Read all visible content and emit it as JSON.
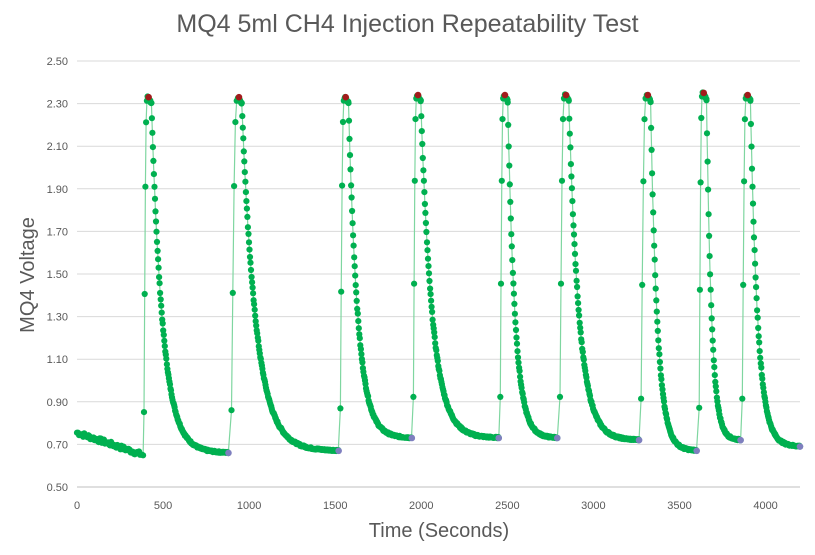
{
  "colors": {
    "series": "#00b050",
    "line": "#7fd6a0",
    "peak_marker": "#a21b1b",
    "base_marker": "#7f7fbf",
    "grid": "#d9d9d9",
    "text": "#595959"
  },
  "chart_data": {
    "type": "scatter",
    "title": "MQ4 5ml CH4  Injection Repeatability Test",
    "xlabel": "Time (Seconds)",
    "ylabel": "MQ4 Voltage",
    "xlim": [
      0,
      4200
    ],
    "ylim": [
      0.5,
      2.5
    ],
    "x_ticks": [
      "0",
      "500",
      "1000",
      "1500",
      "2000",
      "2500",
      "3000",
      "3500",
      "4000"
    ],
    "y_ticks": [
      "0.50",
      "0.70",
      "0.90",
      "1.10",
      "1.30",
      "1.50",
      "1.70",
      "1.90",
      "2.10",
      "2.30",
      "2.50"
    ],
    "grid": "horizontal",
    "legend": "none",
    "series": [
      {
        "marker": "circle",
        "injections": [
          {
            "start_x": 385,
            "peak_x": 410,
            "peak_y": 2.33,
            "end_x": 880,
            "base_before": 0.65,
            "base_after": 0.66
          },
          {
            "start_x": 890,
            "peak_x": 935,
            "peak_y": 2.33,
            "end_x": 1520,
            "base_before": 0.66,
            "base_after": 0.67
          },
          {
            "start_x": 1525,
            "peak_x": 1555,
            "peak_y": 2.33,
            "end_x": 1945,
            "base_before": 0.67,
            "base_after": 0.73
          },
          {
            "start_x": 1950,
            "peak_x": 1975,
            "peak_y": 2.34,
            "end_x": 2450,
            "base_before": 0.73,
            "base_after": 0.73
          },
          {
            "start_x": 2455,
            "peak_x": 2480,
            "peak_y": 2.34,
            "end_x": 2790,
            "base_before": 0.73,
            "base_after": 0.73
          },
          {
            "start_x": 2800,
            "peak_x": 2835,
            "peak_y": 2.34,
            "end_x": 3265,
            "base_before": 0.73,
            "base_after": 0.72
          },
          {
            "start_x": 3270,
            "peak_x": 3310,
            "peak_y": 2.34,
            "end_x": 3600,
            "base_before": 0.72,
            "base_after": 0.67
          },
          {
            "start_x": 3610,
            "peak_x": 3635,
            "peak_y": 2.35,
            "end_x": 3855,
            "base_before": 0.67,
            "base_after": 0.72
          },
          {
            "start_x": 3860,
            "peak_x": 3890,
            "peak_y": 2.34,
            "end_x": 4200,
            "base_before": 0.72,
            "base_after": 0.69
          }
        ]
      }
    ]
  }
}
